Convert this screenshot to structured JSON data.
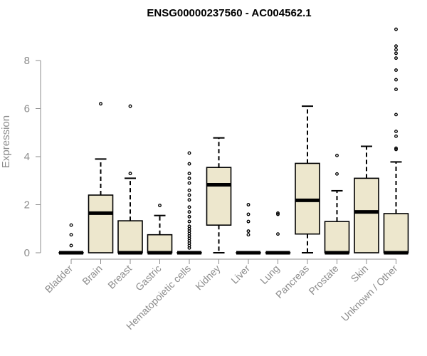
{
  "chart_data": {
    "type": "boxplot",
    "title": "ENSG00000237560 - AC004562.1",
    "ylabel": "Expression",
    "xlabel": "",
    "ylim": [
      0,
      9.4
    ],
    "yticks": [
      0,
      2,
      4,
      6,
      8
    ],
    "grid": false,
    "legend": "none",
    "box_fill": "#ede7cd",
    "categories": [
      "Bladder",
      "Brain",
      "Breast",
      "Gastric",
      "Hematopoietic cells",
      "Kidney",
      "Liver",
      "Lung",
      "Pancreas",
      "Prostate",
      "Skin",
      "Unknown / Other"
    ],
    "boxes": [
      {
        "category": "Bladder",
        "whisker_low": 0,
        "q1": 0,
        "median": 0,
        "q3": 0,
        "whisker_high": 0,
        "outliers": [
          0.3,
          0.75,
          1.15
        ]
      },
      {
        "category": "Brain",
        "whisker_low": 0,
        "q1": 0,
        "median": 1.65,
        "q3": 2.4,
        "whisker_high": 3.9,
        "outliers": [
          6.2
        ]
      },
      {
        "category": "Breast",
        "whisker_low": 0,
        "q1": 0,
        "median": 0,
        "q3": 1.33,
        "whisker_high": 3.1,
        "outliers": [
          3.3,
          6.1
        ]
      },
      {
        "category": "Gastric",
        "whisker_low": 0,
        "q1": 0,
        "median": 0,
        "q3": 0.75,
        "whisker_high": 1.55,
        "outliers": [
          1.97
        ]
      },
      {
        "category": "Hematopoietic cells",
        "whisker_low": 0,
        "q1": 0,
        "median": 0,
        "q3": 0,
        "whisker_high": 0,
        "outliers": [
          0.2,
          0.3,
          0.4,
          0.5,
          0.6,
          0.7,
          0.8,
          0.9,
          1.0,
          1.1,
          1.3,
          1.5,
          1.7,
          1.9,
          2.2,
          2.4,
          2.6,
          2.9,
          3.1,
          3.3,
          3.7,
          4.15
        ]
      },
      {
        "category": "Kidney",
        "whisker_low": 0,
        "q1": 1.15,
        "median": 2.83,
        "q3": 3.55,
        "whisker_high": 4.78,
        "outliers": []
      },
      {
        "category": "Liver",
        "whisker_low": 0,
        "q1": 0,
        "median": 0,
        "q3": 0,
        "whisker_high": 0,
        "outliers": [
          0.75,
          0.9,
          1.3,
          1.6,
          2.0
        ]
      },
      {
        "category": "Lung",
        "whisker_low": 0,
        "q1": 0,
        "median": 0,
        "q3": 0,
        "whisker_high": 0,
        "outliers": [
          0.78,
          1.6,
          1.65
        ]
      },
      {
        "category": "Pancreas",
        "whisker_low": 0,
        "q1": 0.78,
        "median": 2.18,
        "q3": 3.72,
        "whisker_high": 6.1,
        "outliers": []
      },
      {
        "category": "Prostate",
        "whisker_low": 0,
        "q1": 0,
        "median": 0,
        "q3": 1.3,
        "whisker_high": 2.58,
        "outliers": [
          3.28,
          4.05
        ]
      },
      {
        "category": "Skin",
        "whisker_low": 0,
        "q1": 0,
        "median": 1.7,
        "q3": 3.1,
        "whisker_high": 4.43,
        "outliers": []
      },
      {
        "category": "Unknown / Other",
        "whisker_low": 0,
        "q1": 0,
        "median": 0,
        "q3": 1.63,
        "whisker_high": 3.78,
        "outliers": [
          4.3,
          4.35,
          4.85,
          5.05,
          5.75,
          6.8,
          7.2,
          7.6,
          8.1,
          8.3,
          8.45,
          8.6,
          9.3
        ]
      }
    ]
  }
}
